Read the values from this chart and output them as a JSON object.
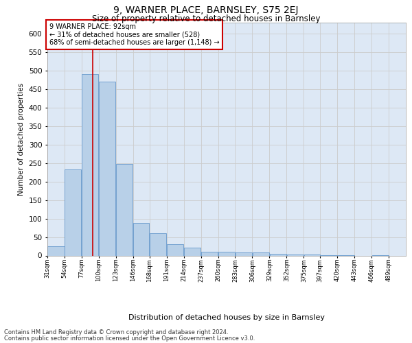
{
  "title": "9, WARNER PLACE, BARNSLEY, S75 2EJ",
  "subtitle": "Size of property relative to detached houses in Barnsley",
  "xlabel": "Distribution of detached houses by size in Barnsley",
  "ylabel": "Number of detached properties",
  "footnote1": "Contains HM Land Registry data © Crown copyright and database right 2024.",
  "footnote2": "Contains public sector information licensed under the Open Government Licence v3.0.",
  "annotation_line1": "9 WARNER PLACE: 92sqm",
  "annotation_line2": "← 31% of detached houses are smaller (528)",
  "annotation_line3": "68% of semi-detached houses are larger (1,148) →",
  "property_sqm": 92,
  "bar_left_edges": [
    31,
    54,
    77,
    100,
    123,
    146,
    168,
    191,
    214,
    237,
    260,
    283,
    306,
    329,
    352,
    375,
    397,
    420,
    443,
    466
  ],
  "bar_widths": [
    23,
    23,
    23,
    23,
    23,
    22,
    23,
    23,
    23,
    23,
    23,
    23,
    23,
    23,
    23,
    22,
    23,
    23,
    23,
    23
  ],
  "bar_heights": [
    25,
    232,
    490,
    470,
    248,
    88,
    60,
    30,
    22,
    10,
    10,
    8,
    8,
    5,
    3,
    2,
    1,
    1,
    0,
    1
  ],
  "tick_labels": [
    "31sqm",
    "54sqm",
    "77sqm",
    "100sqm",
    "123sqm",
    "146sqm",
    "168sqm",
    "191sqm",
    "214sqm",
    "237sqm",
    "260sqm",
    "283sqm",
    "306sqm",
    "329sqm",
    "352sqm",
    "375sqm",
    "397sqm",
    "420sqm",
    "443sqm",
    "466sqm",
    "489sqm"
  ],
  "bar_color": "#b8d0e8",
  "bar_edge_color": "#6699cc",
  "red_line_x": 92,
  "ylim": [
    0,
    630
  ],
  "yticks": [
    0,
    50,
    100,
    150,
    200,
    250,
    300,
    350,
    400,
    450,
    500,
    550,
    600
  ],
  "annotation_box_color": "#cc0000",
  "grid_color": "#cccccc",
  "bg_color": "#dde8f5"
}
